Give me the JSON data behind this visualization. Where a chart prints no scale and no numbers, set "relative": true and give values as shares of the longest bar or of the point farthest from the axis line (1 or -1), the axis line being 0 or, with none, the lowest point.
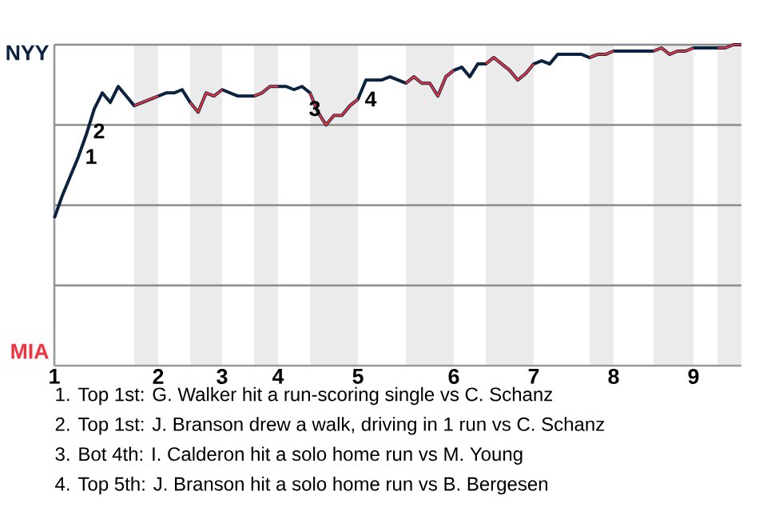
{
  "chart_data": {
    "type": "line",
    "relative": true,
    "categories": [
      "1",
      null,
      null,
      null,
      null,
      null,
      null,
      null,
      null,
      null,
      null,
      null,
      null,
      "2",
      null,
      null,
      null,
      null,
      null,
      null,
      null,
      "3",
      null,
      null,
      null,
      null,
      null,
      null,
      "4",
      null,
      null,
      null,
      null,
      null,
      null,
      null,
      null,
      null,
      "5",
      null,
      null,
      null,
      null,
      null,
      null,
      null,
      null,
      null,
      null,
      null,
      "6",
      null,
      null,
      null,
      null,
      null,
      null,
      null,
      null,
      null,
      "7",
      null,
      null,
      null,
      null,
      null,
      null,
      null,
      null,
      null,
      "8",
      null,
      null,
      null,
      null,
      null,
      null,
      null,
      null,
      null,
      "9",
      null,
      null,
      null,
      null,
      null,
      null
    ],
    "series": [
      {
        "color": "#0c2340",
        "values": [
          0.46,
          0.53,
          0.59,
          0.65,
          0.72,
          0.8,
          0.85,
          0.82,
          0.87,
          0.84,
          0.81,
          0.82,
          0.83,
          0.84,
          0.85,
          0.85,
          0.86,
          0.82,
          0.79,
          0.85,
          0.84,
          0.86,
          0.85,
          0.84,
          0.84,
          0.84,
          0.85,
          0.87,
          0.87,
          0.87,
          0.86,
          0.87,
          0.85,
          0.79,
          0.75,
          0.78,
          0.78,
          0.81,
          0.83,
          0.89,
          0.89,
          0.89,
          0.9,
          0.89,
          0.88,
          0.9,
          0.88,
          0.88,
          0.84,
          0.9,
          0.92,
          0.93,
          0.9,
          0.94,
          0.94,
          0.96,
          0.94,
          0.92,
          0.89,
          0.91,
          0.94,
          0.95,
          0.94,
          0.97,
          0.97,
          0.97,
          0.97,
          0.96,
          0.97,
          0.97,
          0.98,
          0.98,
          0.98,
          0.98,
          0.98,
          0.98,
          0.99,
          0.97,
          0.98,
          0.98,
          0.99,
          0.99,
          0.99,
          0.99,
          0.99,
          1.0,
          1.0
        ]
      },
      {
        "color": "#ef3340",
        "values": [
          null,
          null,
          null,
          null,
          null,
          null,
          null,
          null,
          null,
          null,
          0.81,
          0.82,
          0.83,
          0.84,
          null,
          null,
          null,
          0.82,
          0.79,
          0.85,
          0.84,
          0.86,
          null,
          null,
          null,
          0.84,
          0.85,
          0.87,
          0.87,
          null,
          null,
          null,
          0.85,
          0.79,
          0.75,
          0.78,
          0.78,
          0.81,
          0.83,
          null,
          null,
          null,
          null,
          null,
          0.88,
          0.9,
          0.88,
          0.88,
          0.84,
          0.9,
          0.92,
          null,
          null,
          null,
          0.94,
          0.96,
          0.94,
          0.92,
          0.89,
          0.91,
          0.94,
          null,
          null,
          null,
          null,
          null,
          null,
          0.96,
          0.97,
          0.97,
          0.98,
          null,
          null,
          null,
          null,
          0.98,
          0.99,
          0.97,
          0.98,
          0.98,
          0.99,
          null,
          null,
          0.99,
          0.99,
          1.0,
          1.0
        ]
      }
    ],
    "grid": "y",
    "annotations": [
      "NYY",
      "MIA",
      "1",
      "2",
      "3",
      "4",
      "1. Top 1st: G. Walker hit a run-scoring single vs C. Schanz",
      "2. Top 1st: J. Branson drew a walk, driving in 1 run vs C. Schanz",
      "3. Bot 4th: I. Calderon hit a solo home run vs M. Young",
      "4. Top 5th: J. Branson hit a solo home run vs B. Bergesen"
    ]
  }
}
